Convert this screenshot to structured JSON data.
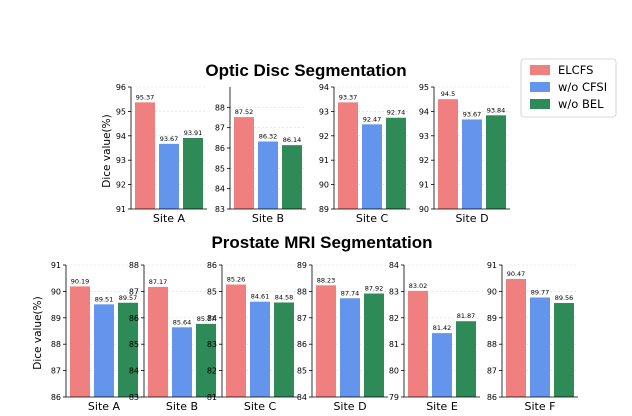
{
  "colors": {
    "ELCFS": "#f08080",
    "w/o CFSI": "#6495ed",
    "w/o BEL": "#2e8b57"
  },
  "legend": [
    "ELCFS",
    "w/o CFSI",
    "w/o BEL"
  ],
  "chart_data": [
    {
      "title": "Optic Disc Segmentation",
      "type": "bar",
      "ylabel": "Dice value(%)",
      "series_names": [
        "ELCFS",
        "w/o CFSI",
        "w/o BEL"
      ],
      "panels": [
        {
          "site": "Site A",
          "ylim": [
            91,
            96
          ],
          "ticks": [
            91,
            92,
            93,
            94,
            95,
            96
          ],
          "values": [
            95.37,
            93.67,
            93.91
          ],
          "labels": [
            "95.37",
            "93.67",
            "93.91"
          ]
        },
        {
          "site": "Site B",
          "ylim": [
            83,
            89
          ],
          "ticks": [
            83,
            84,
            85,
            86,
            87,
            88
          ],
          "values": [
            87.52,
            86.32,
            86.14
          ],
          "labels": [
            "87.52",
            "86.32",
            "86.14"
          ]
        },
        {
          "site": "Site C",
          "ylim": [
            89,
            94
          ],
          "ticks": [
            89,
            90,
            91,
            92,
            93,
            94
          ],
          "values": [
            93.37,
            92.47,
            92.74
          ],
          "labels": [
            "93.37",
            "92.47",
            "92.74"
          ]
        },
        {
          "site": "Site D",
          "ylim": [
            90,
            95
          ],
          "ticks": [
            90,
            91,
            92,
            93,
            94,
            95
          ],
          "values": [
            94.5,
            93.67,
            93.84
          ],
          "labels": [
            "94.5",
            "93.67",
            "93.84"
          ]
        }
      ]
    },
    {
      "title": "Prostate MRI Segmentation",
      "type": "bar",
      "ylabel": "Dice value(%)",
      "series_names": [
        "ELCFS",
        "w/o CFSI",
        "w/o BEL"
      ],
      "panels": [
        {
          "site": "Site A",
          "ylim": [
            86,
            91
          ],
          "ticks": [
            86,
            87,
            88,
            89,
            90,
            91
          ],
          "values": [
            90.19,
            89.51,
            89.57
          ],
          "labels": [
            "90.19",
            "89.51",
            "89.57"
          ]
        },
        {
          "site": "Site B",
          "ylim": [
            83,
            88
          ],
          "ticks": [
            83,
            84,
            85,
            86,
            87,
            88
          ],
          "values": [
            87.17,
            85.64,
            85.77
          ],
          "labels": [
            "87.17",
            "85.64",
            "85.77"
          ]
        },
        {
          "site": "Site C",
          "ylim": [
            81,
            86
          ],
          "ticks": [
            81,
            82,
            83,
            84,
            85,
            86
          ],
          "values": [
            85.26,
            84.61,
            84.58
          ],
          "labels": [
            "85.26",
            "84.61",
            "84.58"
          ]
        },
        {
          "site": "Site D",
          "ylim": [
            84,
            89
          ],
          "ticks": [
            84,
            85,
            86,
            87,
            88,
            89
          ],
          "values": [
            88.23,
            87.74,
            87.92
          ],
          "labels": [
            "88.23",
            "87.74",
            "87.92"
          ]
        },
        {
          "site": "Site E",
          "ylim": [
            79,
            84
          ],
          "ticks": [
            79,
            80,
            81,
            82,
            83,
            84
          ],
          "values": [
            83.02,
            81.42,
            81.87
          ],
          "labels": [
            "83.02",
            "81.42",
            "81.87"
          ]
        },
        {
          "site": "Site F",
          "ylim": [
            86,
            91
          ],
          "ticks": [
            86,
            87,
            88,
            89,
            90,
            91
          ],
          "values": [
            90.47,
            89.77,
            89.56
          ],
          "labels": [
            "90.47",
            "89.77",
            "89.56"
          ]
        }
      ]
    }
  ]
}
